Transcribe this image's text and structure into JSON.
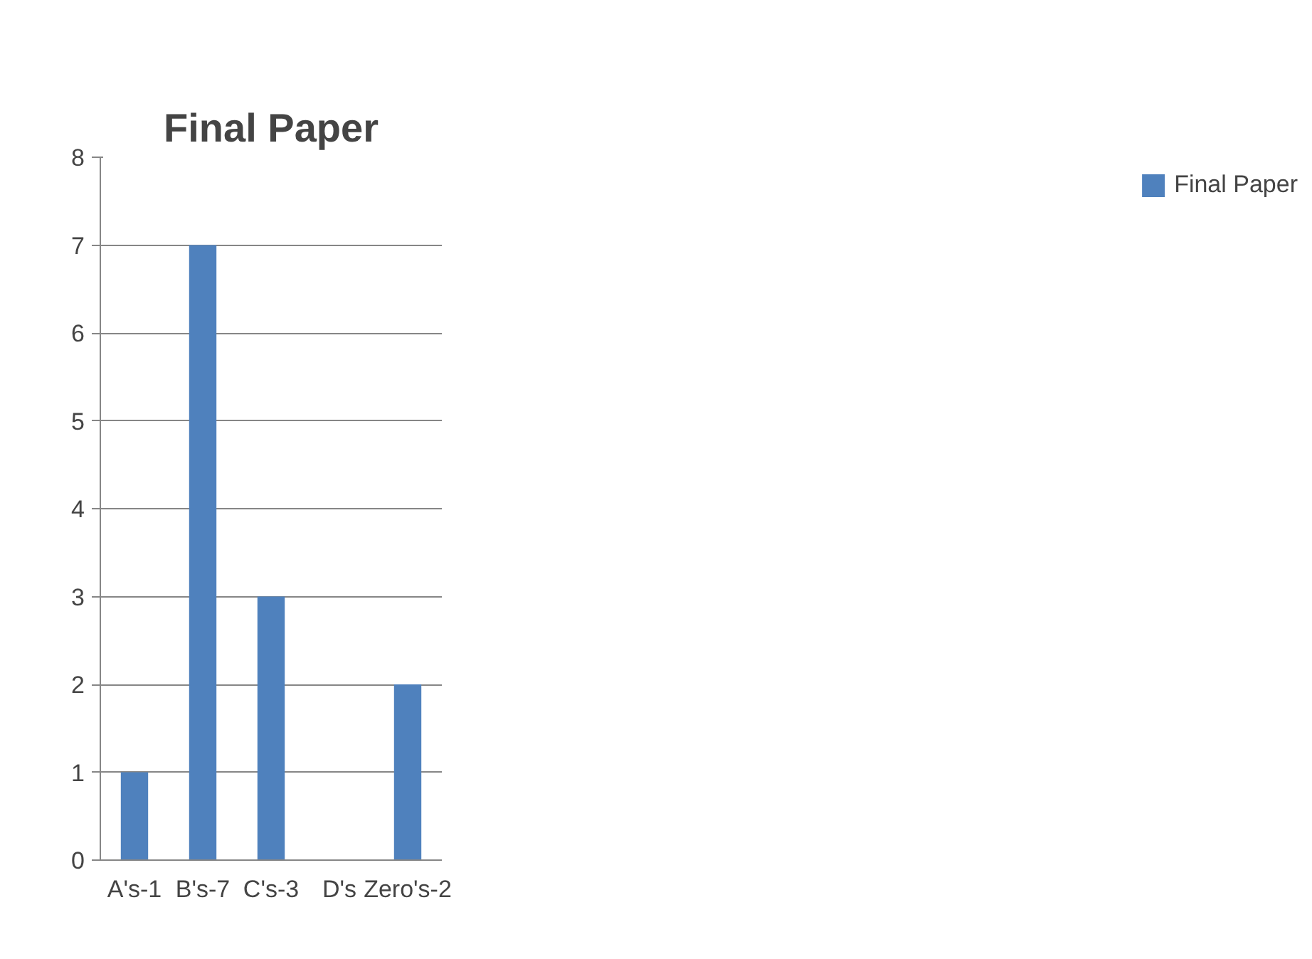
{
  "chart_data": {
    "type": "bar",
    "title": "Final Paper",
    "categories": [
      "A's-1",
      "B's-7",
      "C's-3",
      "D's",
      "Zero's-2"
    ],
    "series": [
      {
        "name": "Final Paper",
        "color": "#4f81bd",
        "values": [
          1,
          7,
          3,
          0,
          2
        ]
      }
    ],
    "ylim": [
      0,
      8
    ],
    "yticks": [
      0,
      1,
      2,
      3,
      4,
      5,
      6,
      7,
      8
    ],
    "grid": "y",
    "legend": "right"
  }
}
